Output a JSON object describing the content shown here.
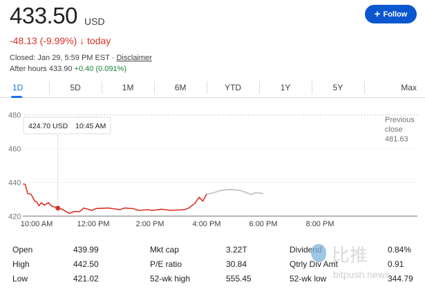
{
  "quote": {
    "price": "433.50",
    "currency": "USD",
    "change": "-48.13 (-9.99%)",
    "change_arrow": "↓",
    "change_suffix": "today",
    "closed_text": "Closed: Jan 29, 5:59 PM EST · ",
    "disclaimer": "Disclaimer",
    "after_hours_label": "After hours 433.90",
    "after_hours_change": "+0.40 (0.091%)"
  },
  "follow": {
    "icon": "plus-icon",
    "label": "Follow"
  },
  "tabs": [
    {
      "label": "1D",
      "active": true
    },
    {
      "label": "5D"
    },
    {
      "label": "1M"
    },
    {
      "label": "6M"
    },
    {
      "label": "YTD"
    },
    {
      "label": "1Y"
    },
    {
      "label": "5Y"
    },
    {
      "label": "Max"
    }
  ],
  "colors": {
    "down": "#d93025",
    "up": "#188038",
    "accent": "#1a73e8",
    "button": "#0b57d0",
    "after_hours_line": "#bdbdbd"
  },
  "chart_data": {
    "type": "line",
    "y_ticks": [
      420,
      440,
      460,
      480
    ],
    "ylim": [
      420,
      480
    ],
    "x_ticks": [
      "10:00 AM",
      "12:00 PM",
      "2:00 PM",
      "4:00 PM",
      "6:00 PM",
      "8:00 PM"
    ],
    "previous_close": {
      "label_1": "Previous",
      "label_2": "close",
      "value": "481.63"
    },
    "tooltip": {
      "price": "424.70 USD",
      "time": "10:45 AM"
    },
    "series": [
      {
        "session": "regular",
        "color": "#d93025",
        "points": [
          [
            "9:31",
            439.1
          ],
          [
            "9:36",
            438.8
          ],
          [
            "9:41",
            433.4
          ],
          [
            "9:48",
            433.0
          ],
          [
            "9:56",
            428.9
          ],
          [
            "10:00",
            428.5
          ],
          [
            "10:05",
            426.1
          ],
          [
            "10:10",
            427.9
          ],
          [
            "10:16",
            426.5
          ],
          [
            "10:25",
            427.9
          ],
          [
            "10:32",
            425.9
          ],
          [
            "10:45",
            424.7
          ],
          [
            "10:54",
            424.1
          ],
          [
            "11:09",
            421.6
          ],
          [
            "11:19",
            422.7
          ],
          [
            "11:31",
            422.7
          ],
          [
            "11:40",
            424.8
          ],
          [
            "11:57",
            423.4
          ],
          [
            "12:07",
            424.5
          ],
          [
            "12:32",
            424.8
          ],
          [
            "12:56",
            423.8
          ],
          [
            "13:06",
            424.8
          ],
          [
            "13:25",
            424.4
          ],
          [
            "13:35",
            423.4
          ],
          [
            "13:55",
            423.8
          ],
          [
            "14:05",
            423.4
          ],
          [
            "14:24",
            424.1
          ],
          [
            "14:43",
            423.4
          ],
          [
            "15:03",
            423.7
          ],
          [
            "15:13",
            423.8
          ],
          [
            "15:22",
            424.8
          ],
          [
            "15:35",
            427.5
          ],
          [
            "15:44",
            431.2
          ],
          [
            "15:52",
            428.9
          ],
          [
            "16:00",
            433.0
          ]
        ]
      },
      {
        "session": "after-hours",
        "color": "#bdbdbd",
        "points": [
          [
            "16:00",
            433.0
          ],
          [
            "16:11",
            433.6
          ],
          [
            "16:31",
            435.3
          ],
          [
            "16:50",
            435.8
          ],
          [
            "17:10",
            435.3
          ],
          [
            "17:24",
            433.9
          ],
          [
            "17:34",
            432.8
          ],
          [
            "17:44",
            433.9
          ],
          [
            "18:00",
            433.4
          ]
        ]
      }
    ]
  },
  "stats": [
    [
      {
        "label": "Open",
        "value": "439.99"
      },
      {
        "label": "Mkt cap",
        "value": "3.22T"
      },
      {
        "label": "Dividend",
        "value": "0.84%"
      }
    ],
    [
      {
        "label": "High",
        "value": "442.50"
      },
      {
        "label": "P/E ratio",
        "value": "30.84"
      },
      {
        "label": "Qtrly Div Amt",
        "value": "0.91"
      }
    ],
    [
      {
        "label": "Low",
        "value": "421.02"
      },
      {
        "label": "52-wk high",
        "value": "555.45"
      },
      {
        "label": "52-wk low",
        "value": "344.79"
      }
    ]
  ],
  "watermark": {
    "cn": "比推",
    "en": "bitpush.news"
  }
}
